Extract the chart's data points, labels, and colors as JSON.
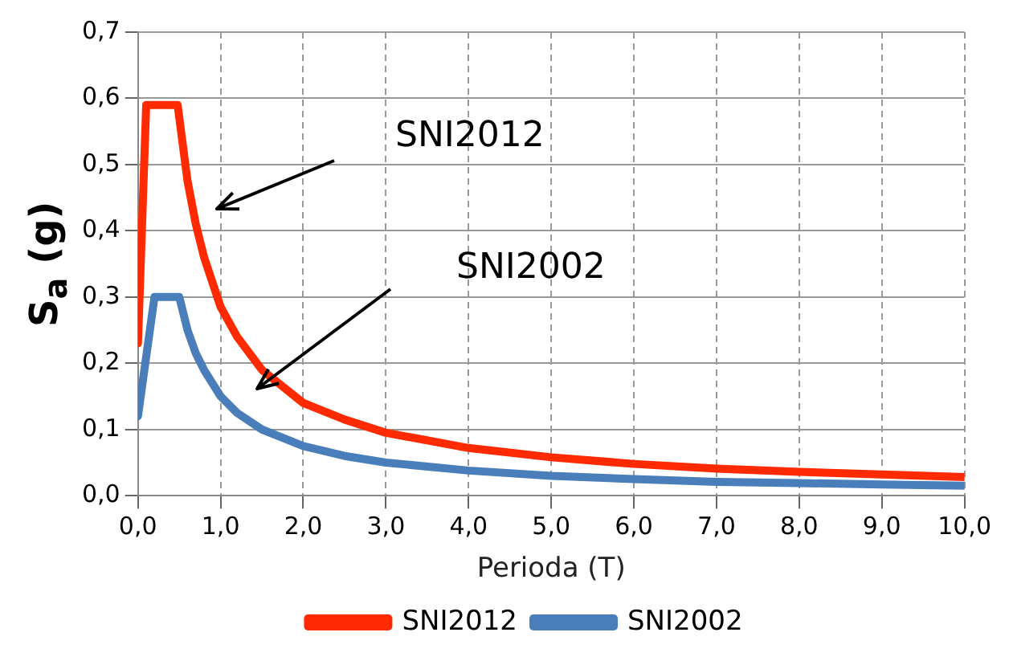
{
  "chart_data": {
    "type": "line",
    "xlabel": "Perioda (T)",
    "ylabel": "S$_{a}$ (g)",
    "xlim": [
      0,
      10
    ],
    "xticks": [
      {
        "value": 0,
        "label": "0,0"
      },
      {
        "value": 1,
        "label": "1,0"
      },
      {
        "value": 2,
        "label": "2,0"
      },
      {
        "value": 3,
        "label": "3,0"
      },
      {
        "value": 4,
        "label": "4,0"
      },
      {
        "value": 5,
        "label": "5,0"
      },
      {
        "value": 6,
        "label": "6,0"
      },
      {
        "value": 7,
        "label": "7,0"
      },
      {
        "value": 8,
        "label": "8,0"
      },
      {
        "value": 9,
        "label": "9,0"
      },
      {
        "value": 10,
        "label": "10,0"
      }
    ],
    "ylim": [
      0,
      0.7
    ],
    "yticks": [
      {
        "value": 0,
        "label": "0,0"
      },
      {
        "value": 0.1,
        "label": "0,1"
      },
      {
        "value": 0.2,
        "label": "0,2"
      },
      {
        "value": 0.3,
        "label": "0,3"
      },
      {
        "value": 0.4,
        "label": "0,4"
      },
      {
        "value": 0.5,
        "label": "0,5"
      },
      {
        "value": 0.6,
        "label": "0,6"
      },
      {
        "value": 0.7,
        "label": "0,7"
      }
    ],
    "series": [
      {
        "name": "SNI2012",
        "color": "#ff2a00",
        "x": [
          0,
          0.1,
          0.2,
          0.48,
          0.6,
          0.7,
          0.8,
          1,
          1.2,
          1.5,
          2,
          2.5,
          3,
          4,
          5,
          6,
          7,
          8,
          9,
          10
        ],
        "values": [
          0.23,
          0.59,
          0.59,
          0.59,
          0.475,
          0.41,
          0.36,
          0.285,
          0.24,
          0.19,
          0.14,
          0.115,
          0.095,
          0.072,
          0.058,
          0.048,
          0.041,
          0.036,
          0.032,
          0.028
        ]
      },
      {
        "name": "SNI2002",
        "color": "#4a7ebb",
        "x": [
          0,
          0.2,
          0.5,
          0.6,
          0.7,
          0.8,
          1,
          1.2,
          1.5,
          2,
          2.5,
          3,
          4,
          5,
          6,
          7,
          8,
          9,
          10
        ],
        "values": [
          0.12,
          0.3,
          0.3,
          0.25,
          0.215,
          0.19,
          0.15,
          0.125,
          0.1,
          0.075,
          0.06,
          0.05,
          0.038,
          0.03,
          0.025,
          0.021,
          0.019,
          0.017,
          0.015
        ]
      }
    ],
    "annotations": [
      "SNI2012",
      "SNI2002"
    ],
    "grid": true,
    "legend": "bottom",
    "marker": "none",
    "line_style": "solid"
  }
}
